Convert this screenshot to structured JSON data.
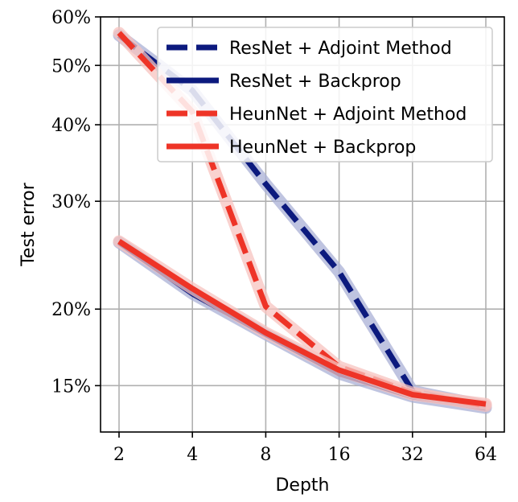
{
  "chart_data": {
    "type": "line",
    "xlabel": "Depth",
    "ylabel": "Test error",
    "x_scale": "log2",
    "y_scale": "log",
    "x": [
      2,
      4,
      8,
      16,
      32,
      64
    ],
    "x_tick_labels": [
      "2",
      "4",
      "8",
      "16",
      "32",
      "64"
    ],
    "y_ticks": [
      15,
      20,
      30,
      40,
      50,
      60
    ],
    "y_tick_labels": [
      "15%",
      "20%",
      "30%",
      "40%",
      "50%",
      "60%"
    ],
    "ylim": [
      12.6,
      60
    ],
    "grid": true,
    "legend_position": "top-right",
    "series": [
      {
        "name": "ResNet + Adjoint Method",
        "color": "#0c1a7e",
        "band_color": "#a9b0d6",
        "dash": true,
        "values": [
          56.0,
          45.5,
          32.0,
          23.0,
          14.7,
          13.9
        ]
      },
      {
        "name": "ResNet + Backprop",
        "color": "#0c1a7e",
        "band_color": "#a9b0d6",
        "dash": false,
        "values": [
          25.7,
          21.2,
          18.2,
          15.7,
          14.4,
          13.8
        ]
      },
      {
        "name": "HeunNet + Adjoint Method",
        "color": "#ee3427",
        "band_color": "#f7c3bf",
        "dash": true,
        "values": [
          56.5,
          42.0,
          20.2,
          16.1,
          14.6,
          13.9
        ]
      },
      {
        "name": "HeunNet + Backprop",
        "color": "#ee3427",
        "band_color": "#f7c3bf",
        "dash": false,
        "values": [
          25.8,
          21.6,
          18.3,
          15.9,
          14.5,
          14.0
        ]
      }
    ]
  }
}
